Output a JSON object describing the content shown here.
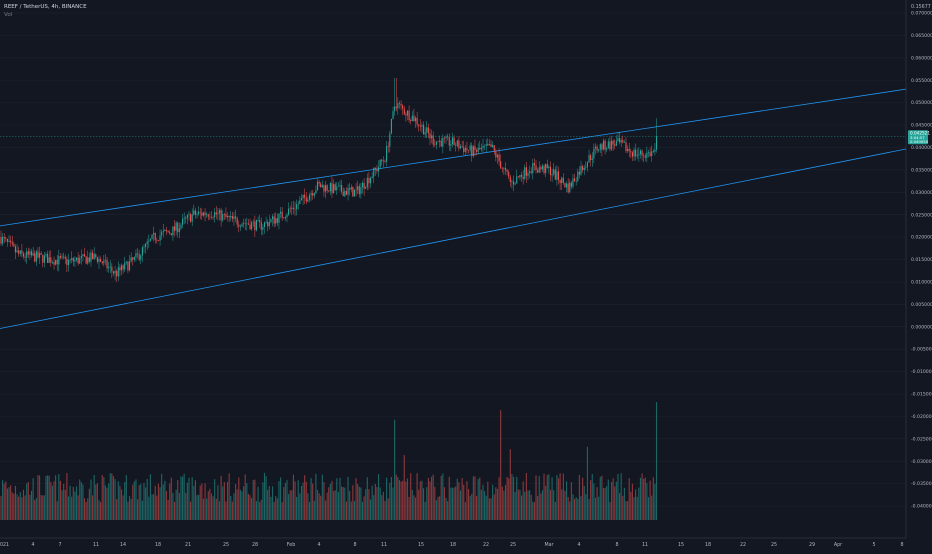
{
  "header": {
    "symbol_line": "REEF / TetherUS, 4h, BINANCE",
    "volume_label": "Vol"
  },
  "price_axis": {
    "top_label": "0.15677",
    "ticks": [
      "0.070000",
      "0.065000",
      "0.060000",
      "0.055000",
      "0.050000",
      "0.045000",
      "0.040000",
      "0.035000",
      "0.030000",
      "0.025000",
      "0.020000",
      "0.015000",
      "0.010000",
      "0.005000",
      "0.000000",
      "-0.005000",
      "-0.010000",
      "-0.015000",
      "-0.020000",
      "-0.025000",
      "-0.030000",
      "-0.035000",
      "-0.040000"
    ],
    "current_price": "0.042521",
    "current_sub1": "3:04:57",
    "current_sub2": "0.040050"
  },
  "time_axis": {
    "labels": [
      "2021",
      "4",
      "7",
      "11",
      "14",
      "18",
      "21",
      "25",
      "28",
      "Feb",
      "4",
      "8",
      "11",
      "15",
      "18",
      "22",
      "25",
      "Mar",
      "4",
      "8",
      "11",
      "15",
      "18",
      "22",
      "25",
      "29",
      "Apr",
      "5",
      "8"
    ]
  },
  "colors": {
    "background": "#131722",
    "up": "#26a69a",
    "down": "#ef5350",
    "channel": "#2196f3",
    "grid": "#1e2230",
    "price_tag": "#26a69a"
  },
  "chart_data": {
    "type": "candlestick",
    "title": "REEF / TetherUS, 4h, BINANCE",
    "yrange": [
      -0.042,
      0.072
    ],
    "channel_lines": [
      {
        "name": "upper",
        "points": [
          [
            "2021-01-01",
            0.0225
          ],
          [
            "2021-03-11",
            0.0449
          ]
        ]
      },
      {
        "name": "lower",
        "points": [
          [
            "2021-01-01",
            -0.0004
          ],
          [
            "2021-03-11",
            0.029
          ]
        ]
      }
    ],
    "close_path_anchors": [
      [
        "2021-01-01",
        0.02
      ],
      [
        "2021-01-03",
        0.016
      ],
      [
        "2021-01-05",
        0.0155
      ],
      [
        "2021-01-08",
        0.0145
      ],
      [
        "2021-01-11",
        0.0155
      ],
      [
        "2021-01-13",
        0.0118
      ],
      [
        "2021-01-15",
        0.015
      ],
      [
        "2021-01-17",
        0.02
      ],
      [
        "2021-01-19",
        0.0215
      ],
      [
        "2021-01-21",
        0.025
      ],
      [
        "2021-01-23",
        0.0255
      ],
      [
        "2021-01-25",
        0.0238
      ],
      [
        "2021-01-28",
        0.0225
      ],
      [
        "2021-01-30",
        0.0245
      ],
      [
        "2021-02-01",
        0.0275
      ],
      [
        "2021-02-03",
        0.0315
      ],
      [
        "2021-02-05",
        0.0305
      ],
      [
        "2021-02-07",
        0.03
      ],
      [
        "2021-02-09",
        0.035
      ],
      [
        "2021-02-10",
        0.038
      ],
      [
        "2021-02-11",
        0.05
      ],
      [
        "2021-02-12",
        0.048
      ],
      [
        "2021-02-13",
        0.0465
      ],
      [
        "2021-02-15",
        0.0415
      ],
      [
        "2021-02-17",
        0.041
      ],
      [
        "2021-02-19",
        0.039
      ],
      [
        "2021-02-21",
        0.04
      ],
      [
        "2021-02-23",
        0.032
      ],
      [
        "2021-02-25",
        0.0355
      ],
      [
        "2021-02-27",
        0.035
      ],
      [
        "2021-03-01",
        0.031
      ],
      [
        "2021-03-02",
        0.0345
      ],
      [
        "2021-03-04",
        0.04
      ],
      [
        "2021-03-06",
        0.041
      ],
      [
        "2021-03-08",
        0.0385
      ],
      [
        "2021-03-09",
        0.0385
      ],
      [
        "2021-03-10",
        0.039
      ],
      [
        "2021-03-11",
        0.0425
      ]
    ],
    "volume_spikes": [
      [
        "2021-02-11",
        0.85
      ],
      [
        "2021-02-12",
        0.55
      ],
      [
        "2021-02-22",
        0.93
      ],
      [
        "2021-02-23",
        0.6
      ],
      [
        "2021-03-03",
        0.62
      ],
      [
        "2021-03-11",
        1.0
      ]
    ]
  }
}
